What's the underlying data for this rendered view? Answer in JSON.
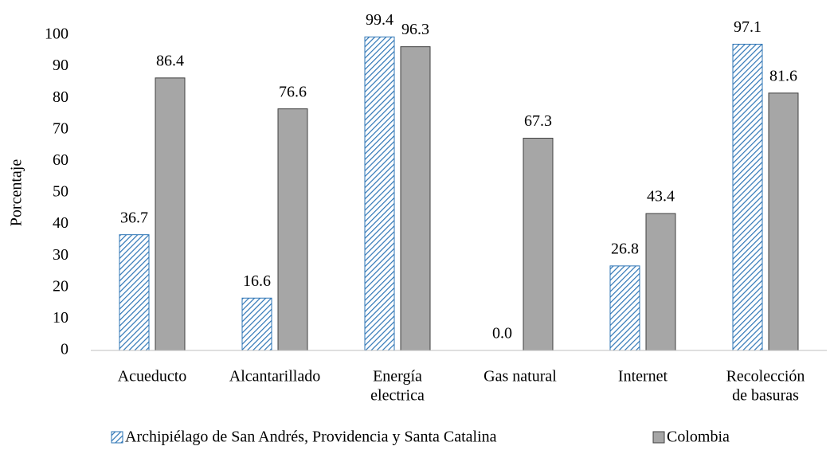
{
  "chart_data": {
    "type": "bar",
    "y_label": "Porcentaje",
    "categories": [
      [
        "Acueducto"
      ],
      [
        "Alcantarillado"
      ],
      [
        "Energía",
        "electrica"
      ],
      [
        "Gas natural"
      ],
      [
        "Internet"
      ],
      [
        "Recolección",
        "de basuras"
      ]
    ],
    "series": [
      {
        "name": "Archipiélago de San Andrés, Providencia y Santa Catalina",
        "color": "#2e75b6",
        "hatch": true,
        "values": [
          36.7,
          16.6,
          99.4,
          0.0,
          26.8,
          97.1
        ],
        "value_labels": [
          "36.7",
          "16.6",
          "99.4",
          "0.0",
          "26.8",
          "97.1"
        ]
      },
      {
        "name": "Colombia",
        "color": "#a6a6a6",
        "hatch": false,
        "values": [
          86.4,
          76.6,
          96.3,
          67.3,
          43.4,
          81.6
        ],
        "value_labels": [
          "86.4",
          "76.6",
          "96.3",
          "67.3",
          "43.4",
          "81.6"
        ]
      }
    ],
    "ylim": [
      0,
      100
    ],
    "yticks": [
      0,
      10,
      20,
      30,
      40,
      50,
      60,
      70,
      80,
      90,
      100
    ],
    "grid": false
  }
}
